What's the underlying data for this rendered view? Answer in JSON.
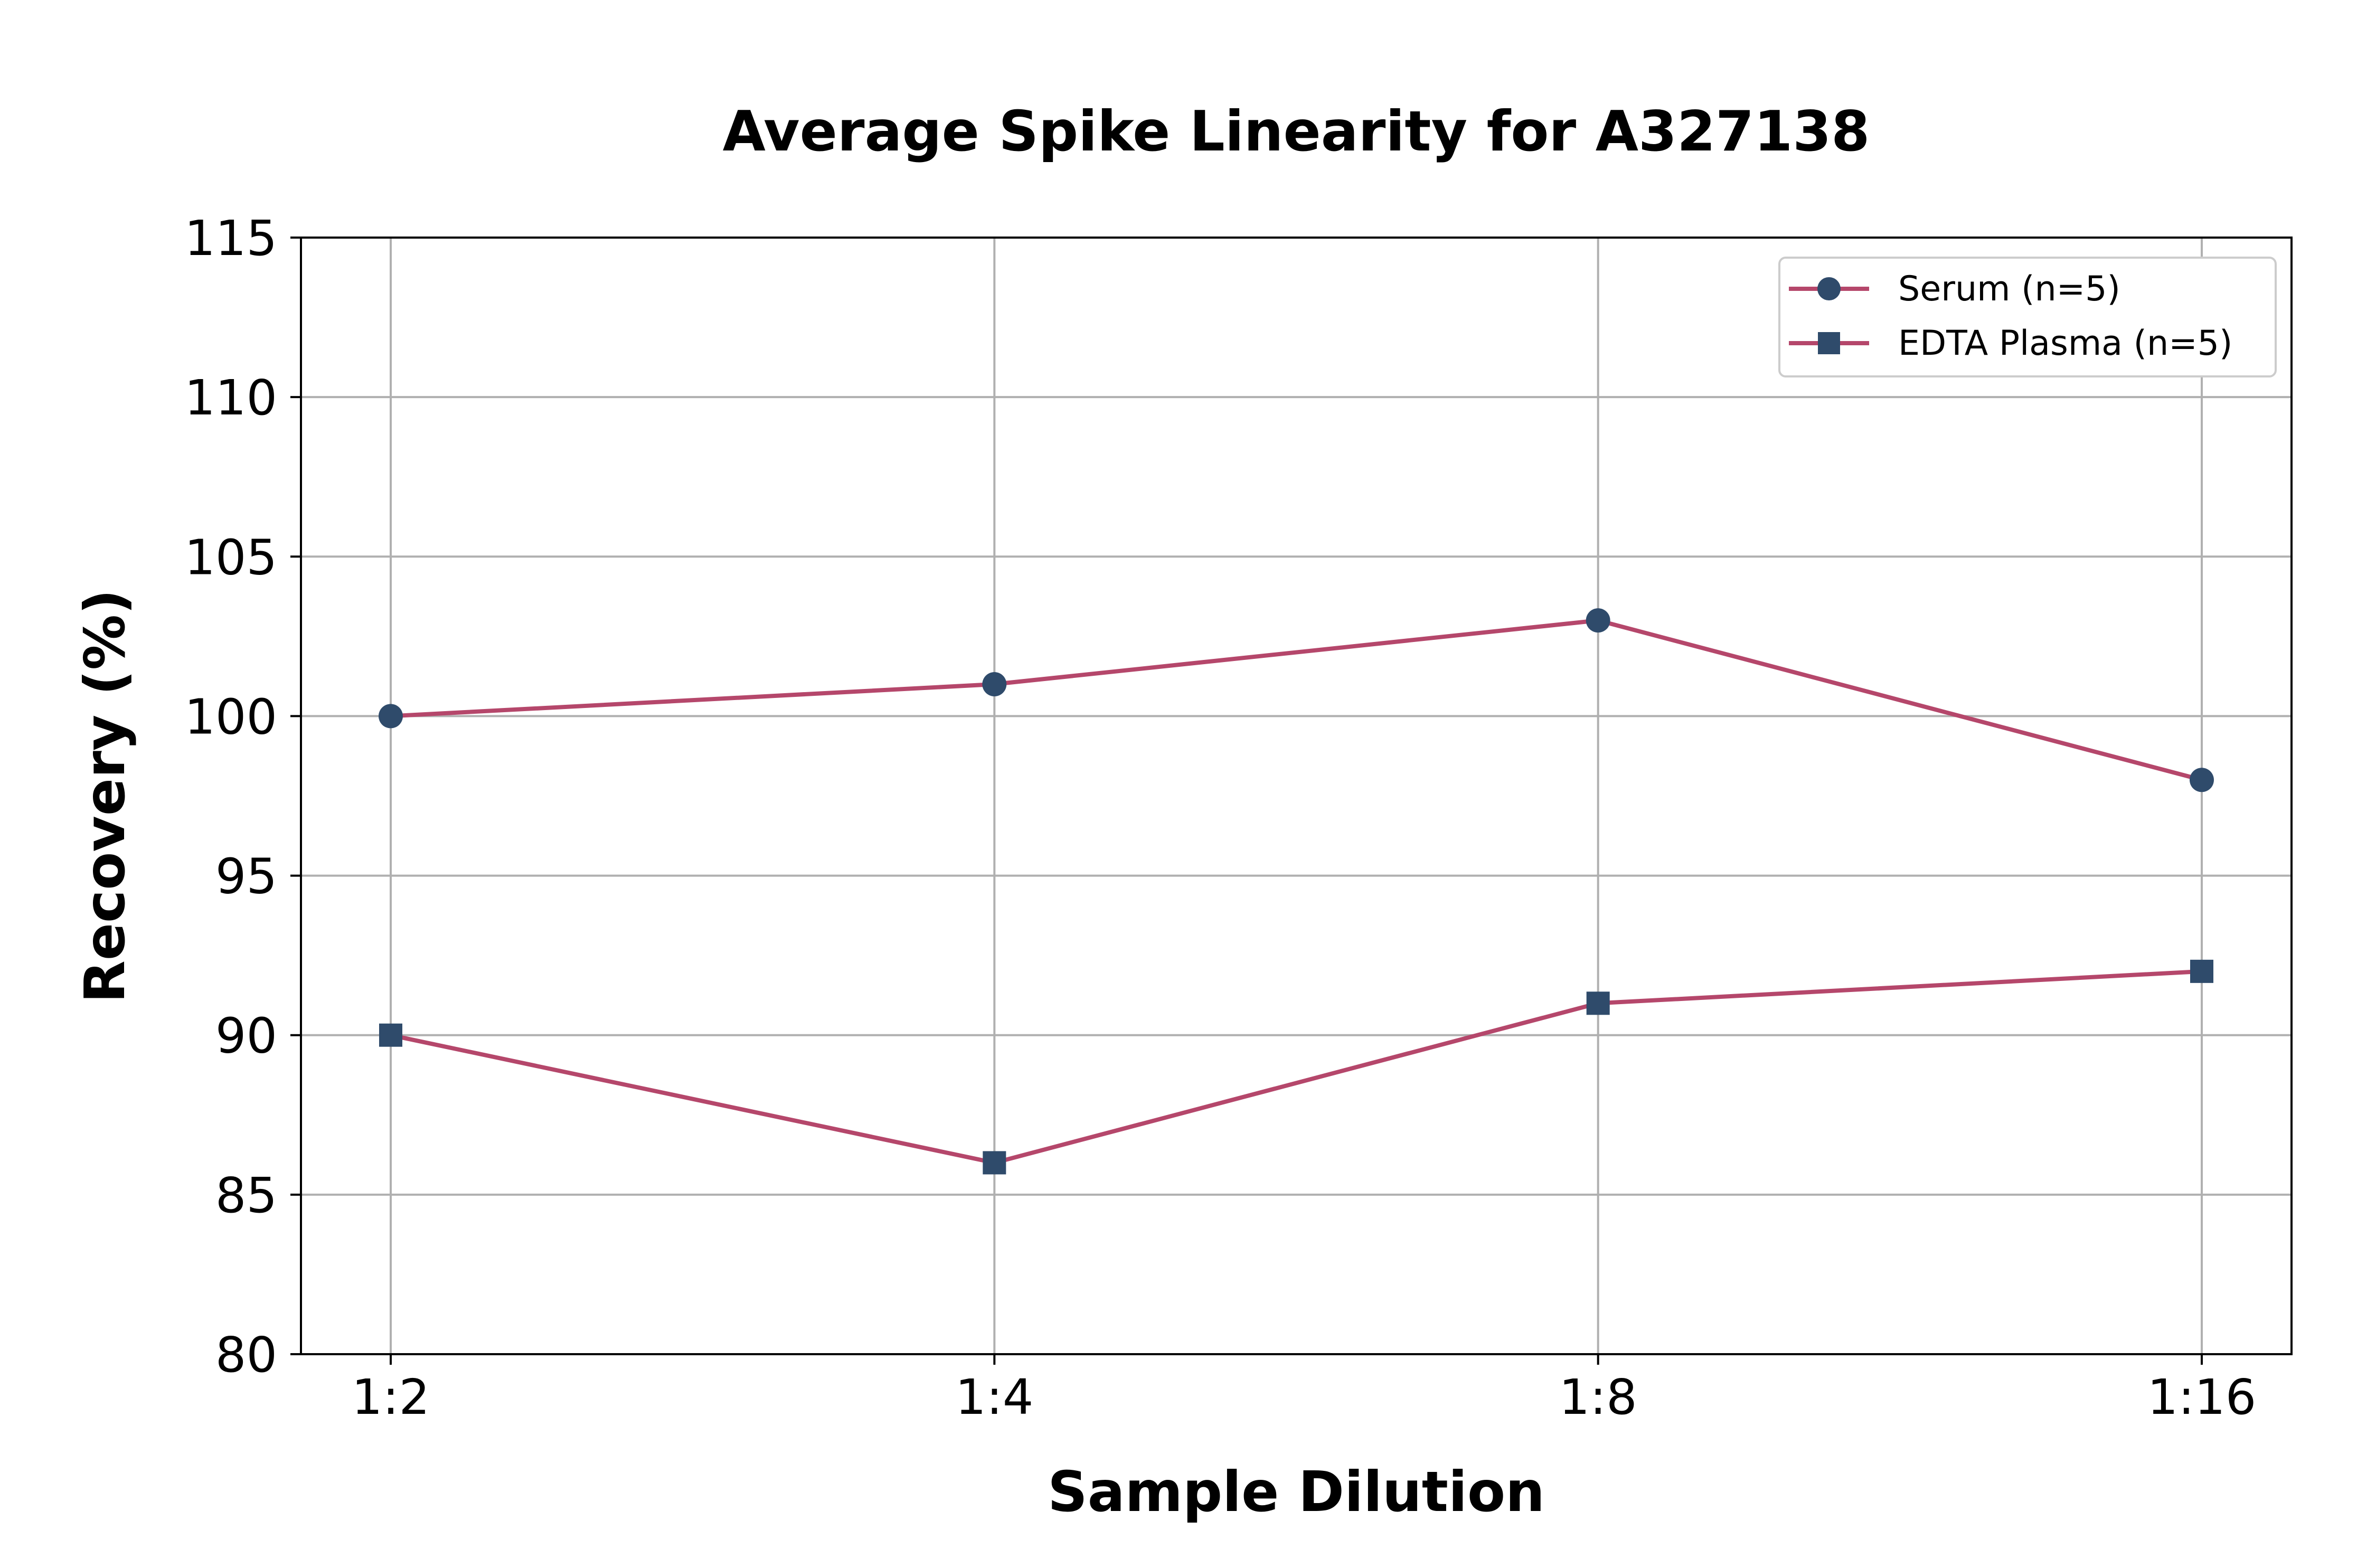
{
  "colors": {
    "line": "#b5476b",
    "marker": "#2f4b6b",
    "grid": "#b0b0b0",
    "axis": "#000000",
    "legend_border": "#cccccc"
  },
  "chart_data": {
    "type": "line",
    "title": "Average Spike Linearity for A327138",
    "xlabel": "Sample Dilution",
    "ylabel": "Recovery (%)",
    "categories": [
      "1:2",
      "1:4",
      "1:8",
      "1:16"
    ],
    "ylim": [
      80,
      115
    ],
    "yticks": [
      80,
      85,
      90,
      95,
      100,
      105,
      110,
      115
    ],
    "grid": true,
    "legend_position": "top-right",
    "series": [
      {
        "name": "Serum (n=5)",
        "marker": "circle",
        "values": [
          100,
          101,
          103,
          98
        ]
      },
      {
        "name": "EDTA Plasma (n=5)",
        "marker": "square",
        "values": [
          90,
          86,
          91,
          92
        ]
      }
    ]
  }
}
